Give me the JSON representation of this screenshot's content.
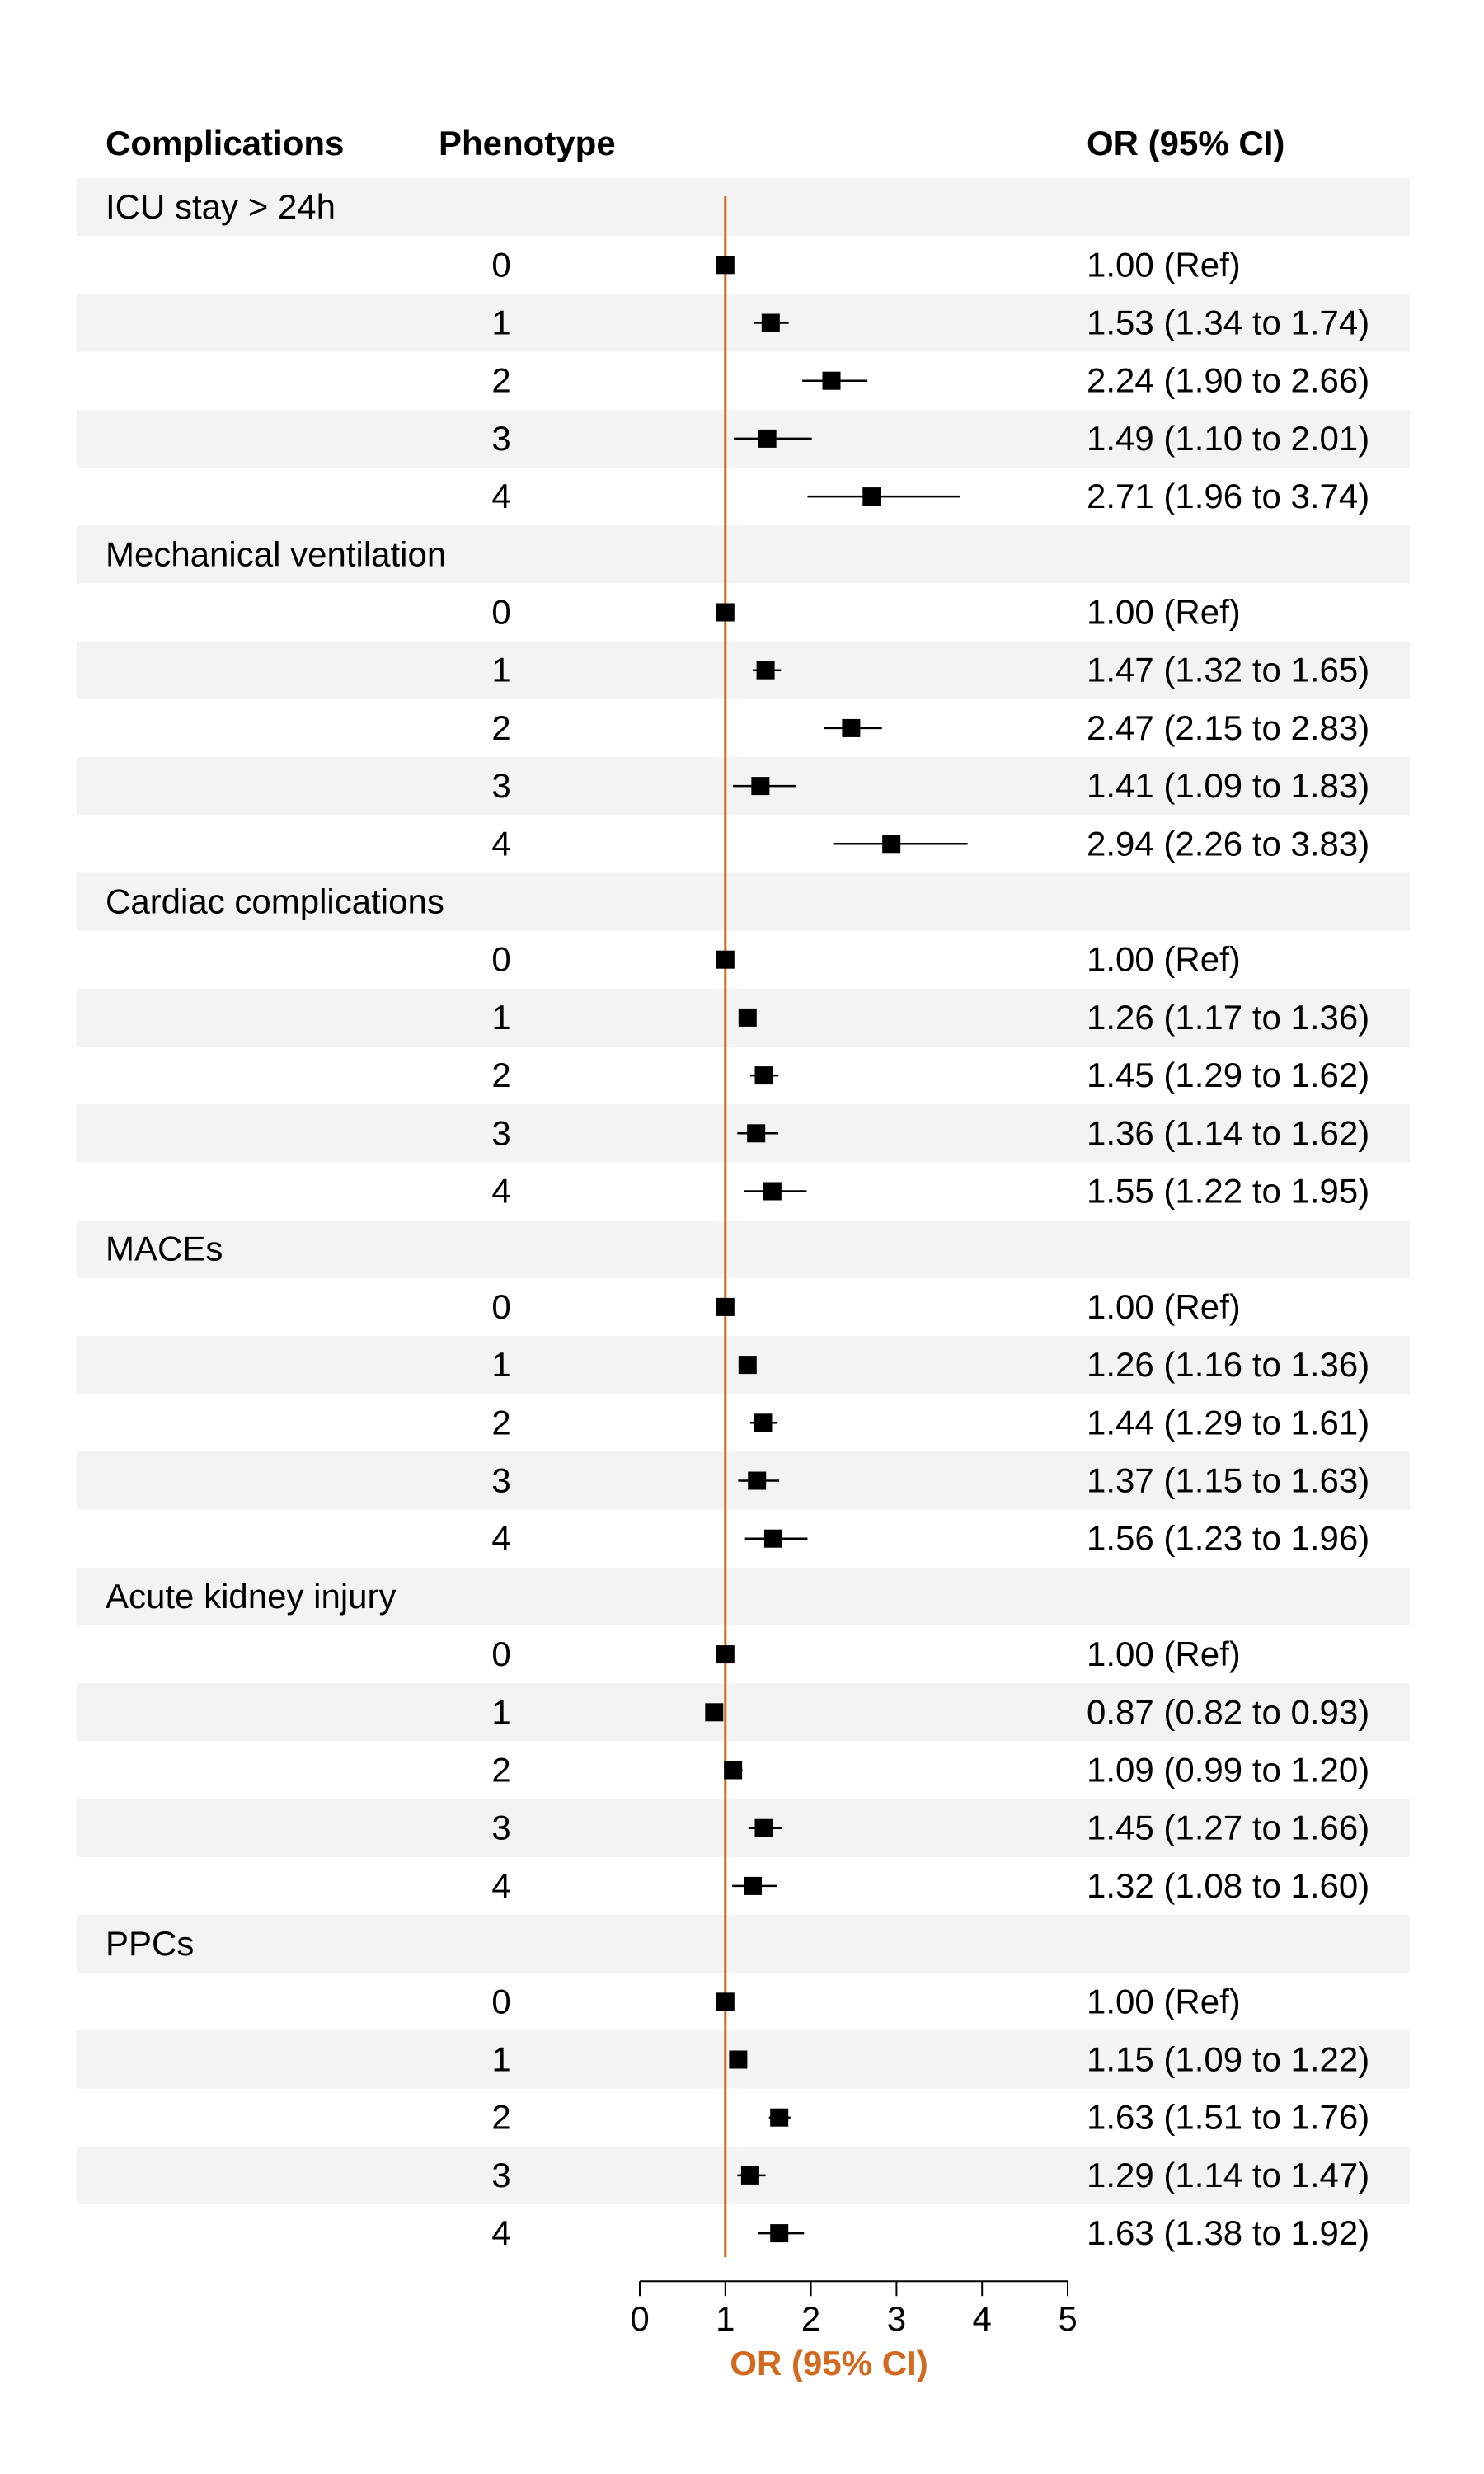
{
  "chart_data": {
    "type": "forest",
    "columns": {
      "complications": "Complications",
      "phenotype": "Phenotype",
      "or": "OR (95% CI)"
    },
    "xlabel": "OR (95% CI)",
    "xlim": [
      0,
      5
    ],
    "xticks": [
      0,
      1,
      2,
      3,
      4,
      5
    ],
    "reference_line": 1,
    "colors": {
      "reference": "#D2691E",
      "stripe": "#F2F3F2",
      "marker": "#000000",
      "xlabel": "#D2691E"
    },
    "groups": [
      {
        "name": "ICU stay > 24h",
        "rows": [
          {
            "phenotype": "0",
            "or": 1.0,
            "lo": 1.0,
            "hi": 1.0,
            "label": "1.00 (Ref)"
          },
          {
            "phenotype": "1",
            "or": 1.53,
            "lo": 1.34,
            "hi": 1.74,
            "label": "1.53 (1.34 to 1.74)"
          },
          {
            "phenotype": "2",
            "or": 2.24,
            "lo": 1.9,
            "hi": 2.66,
            "label": "2.24 (1.90 to 2.66)"
          },
          {
            "phenotype": "3",
            "or": 1.49,
            "lo": 1.1,
            "hi": 2.01,
            "label": "1.49 (1.10 to 2.01)"
          },
          {
            "phenotype": "4",
            "or": 2.71,
            "lo": 1.96,
            "hi": 3.74,
            "label": "2.71 (1.96 to 3.74)"
          }
        ]
      },
      {
        "name": "Mechanical ventilation",
        "rows": [
          {
            "phenotype": "0",
            "or": 1.0,
            "lo": 1.0,
            "hi": 1.0,
            "label": "1.00 (Ref)"
          },
          {
            "phenotype": "1",
            "or": 1.47,
            "lo": 1.32,
            "hi": 1.65,
            "label": "1.47 (1.32 to 1.65)"
          },
          {
            "phenotype": "2",
            "or": 2.47,
            "lo": 2.15,
            "hi": 2.83,
            "label": "2.47 (2.15 to 2.83)"
          },
          {
            "phenotype": "3",
            "or": 1.41,
            "lo": 1.09,
            "hi": 1.83,
            "label": "1.41 (1.09 to 1.83)"
          },
          {
            "phenotype": "4",
            "or": 2.94,
            "lo": 2.26,
            "hi": 3.83,
            "label": "2.94 (2.26 to 3.83)"
          }
        ]
      },
      {
        "name": "Cardiac complications",
        "rows": [
          {
            "phenotype": "0",
            "or": 1.0,
            "lo": 1.0,
            "hi": 1.0,
            "label": "1.00 (Ref)"
          },
          {
            "phenotype": "1",
            "or": 1.26,
            "lo": 1.17,
            "hi": 1.36,
            "label": "1.26 (1.17 to 1.36)"
          },
          {
            "phenotype": "2",
            "or": 1.45,
            "lo": 1.29,
            "hi": 1.62,
            "label": "1.45 (1.29 to 1.62)"
          },
          {
            "phenotype": "3",
            "or": 1.36,
            "lo": 1.14,
            "hi": 1.62,
            "label": "1.36 (1.14 to 1.62)"
          },
          {
            "phenotype": "4",
            "or": 1.55,
            "lo": 1.22,
            "hi": 1.95,
            "label": "1.55 (1.22 to 1.95)"
          }
        ]
      },
      {
        "name": "MACEs",
        "rows": [
          {
            "phenotype": "0",
            "or": 1.0,
            "lo": 1.0,
            "hi": 1.0,
            "label": "1.00 (Ref)"
          },
          {
            "phenotype": "1",
            "or": 1.26,
            "lo": 1.16,
            "hi": 1.36,
            "label": "1.26 (1.16 to 1.36)"
          },
          {
            "phenotype": "2",
            "or": 1.44,
            "lo": 1.29,
            "hi": 1.61,
            "label": "1.44 (1.29 to 1.61)"
          },
          {
            "phenotype": "3",
            "or": 1.37,
            "lo": 1.15,
            "hi": 1.63,
            "label": "1.37 (1.15 to 1.63)"
          },
          {
            "phenotype": "4",
            "or": 1.56,
            "lo": 1.23,
            "hi": 1.96,
            "label": "1.56 (1.23 to 1.96)"
          }
        ]
      },
      {
        "name": "Acute kidney injury",
        "rows": [
          {
            "phenotype": "0",
            "or": 1.0,
            "lo": 1.0,
            "hi": 1.0,
            "label": "1.00 (Ref)"
          },
          {
            "phenotype": "1",
            "or": 0.87,
            "lo": 0.82,
            "hi": 0.93,
            "label": "0.87 (0.82 to 0.93)"
          },
          {
            "phenotype": "2",
            "or": 1.09,
            "lo": 0.99,
            "hi": 1.2,
            "label": "1.09 (0.99 to 1.20)"
          },
          {
            "phenotype": "3",
            "or": 1.45,
            "lo": 1.27,
            "hi": 1.66,
            "label": "1.45 (1.27 to 1.66)"
          },
          {
            "phenotype": "4",
            "or": 1.32,
            "lo": 1.08,
            "hi": 1.6,
            "label": "1.32 (1.08 to 1.60)"
          }
        ]
      },
      {
        "name": "PPCs",
        "rows": [
          {
            "phenotype": "0",
            "or": 1.0,
            "lo": 1.0,
            "hi": 1.0,
            "label": "1.00 (Ref)"
          },
          {
            "phenotype": "1",
            "or": 1.15,
            "lo": 1.09,
            "hi": 1.22,
            "label": "1.15 (1.09 to 1.22)"
          },
          {
            "phenotype": "2",
            "or": 1.63,
            "lo": 1.51,
            "hi": 1.76,
            "label": "1.63 (1.51 to 1.76)"
          },
          {
            "phenotype": "3",
            "or": 1.29,
            "lo": 1.14,
            "hi": 1.47,
            "label": "1.29 (1.14 to 1.47)"
          },
          {
            "phenotype": "4",
            "or": 1.63,
            "lo": 1.38,
            "hi": 1.92,
            "label": "1.63 (1.38 to 1.92)"
          }
        ]
      }
    ]
  }
}
